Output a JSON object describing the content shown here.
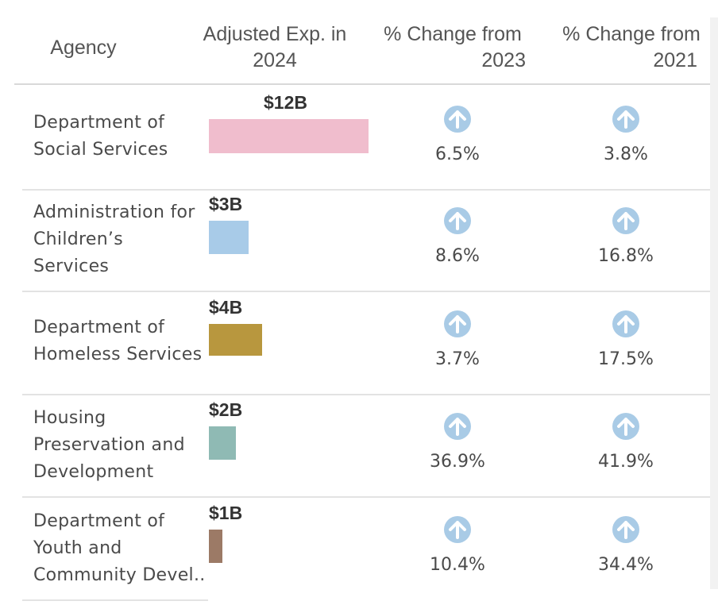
{
  "headers": {
    "agency": "Agency",
    "exp_line1": "Adjusted Exp. in",
    "exp_line2": "2024",
    "c23_line1": "% Change from",
    "c23_line2": "2023",
    "c21_line1": "% Change from",
    "c21_line2": "2021"
  },
  "icons": {
    "change": "arrow-up-circle-icon",
    "color": "#a9cbe6"
  },
  "chart_data": {
    "type": "table",
    "columns": [
      "Agency",
      "Adjusted Exp. in 2024",
      "% Change from 2023",
      "% Change from 2021"
    ],
    "rows": [
      {
        "agency": "Department of\nSocial Services",
        "value": 12,
        "label": "$12B",
        "color": "#f0bdcd",
        "chg2023": "6.5%",
        "chg2021": "3.8%"
      },
      {
        "agency": "Administration for\nChildren’s\nServices",
        "value": 3,
        "label": "$3B",
        "color": "#a8cbe8",
        "chg2023": "8.6%",
        "chg2021": "16.8%"
      },
      {
        "agency": "Department of\nHomeless Services",
        "value": 4,
        "label": "$4B",
        "color": "#b8973e",
        "chg2023": "3.7%",
        "chg2021": "17.5%"
      },
      {
        "agency": "Housing\nPreservation and\nDevelopment",
        "value": 2,
        "label": "$2B",
        "color": "#8fbab4",
        "chg2023": "36.9%",
        "chg2021": "41.9%"
      },
      {
        "agency": "Department of\nYouth and\nCommunity Devel..",
        "value": 1,
        "label": "$1B",
        "color": "#9c7a66",
        "chg2023": "10.4%",
        "chg2021": "34.4%"
      }
    ]
  }
}
